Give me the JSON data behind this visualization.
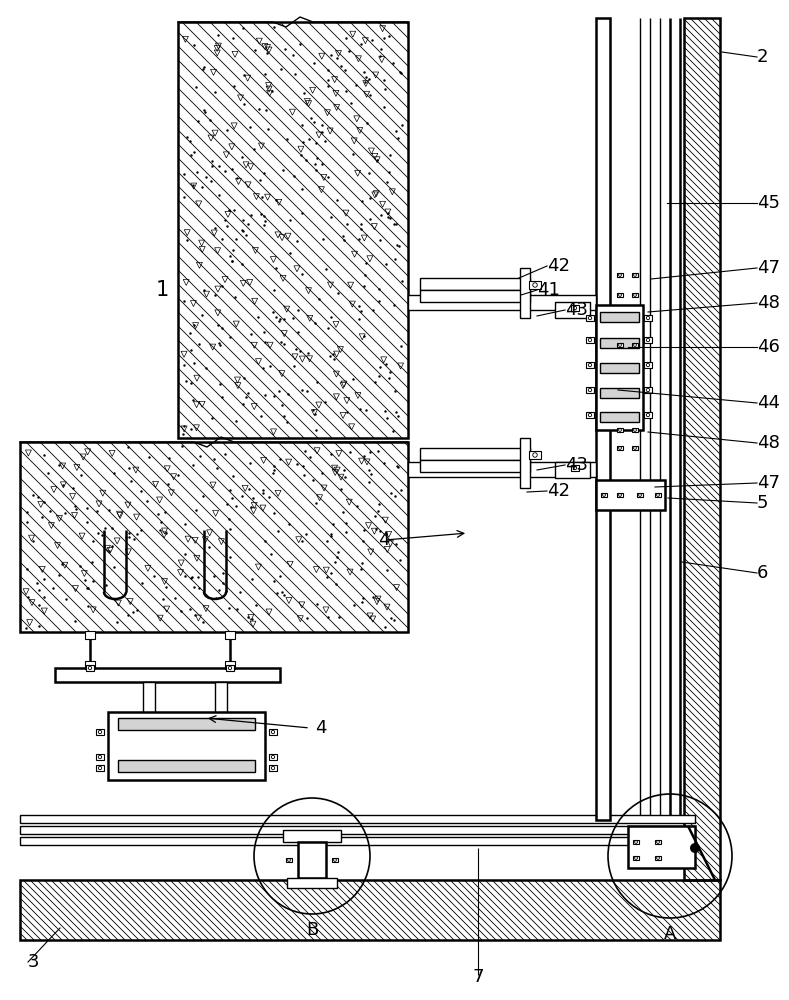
{
  "bg": "#ffffff",
  "lc": "#000000",
  "lw": 1.0,
  "lw2": 1.8,
  "right_labels": [
    [
      "2",
      757,
      57,
      722,
      52
    ],
    [
      "45",
      757,
      203,
      667,
      203
    ],
    [
      "47",
      757,
      268,
      651,
      279
    ],
    [
      "48",
      757,
      303,
      648,
      312
    ],
    [
      "46",
      757,
      347,
      628,
      347
    ],
    [
      "44",
      757,
      403,
      618,
      390
    ],
    [
      "48",
      757,
      443,
      648,
      432
    ],
    [
      "47",
      757,
      483,
      655,
      487
    ],
    [
      "5",
      757,
      503,
      668,
      498
    ],
    [
      "6",
      757,
      573,
      682,
      562
    ]
  ],
  "upper_labels": [
    [
      "42",
      547,
      266,
      519,
      278
    ],
    [
      "41",
      537,
      290,
      521,
      295
    ],
    [
      "43",
      565,
      310,
      537,
      316
    ],
    [
      "43",
      565,
      465,
      537,
      470
    ],
    [
      "42",
      547,
      491,
      527,
      492
    ]
  ]
}
